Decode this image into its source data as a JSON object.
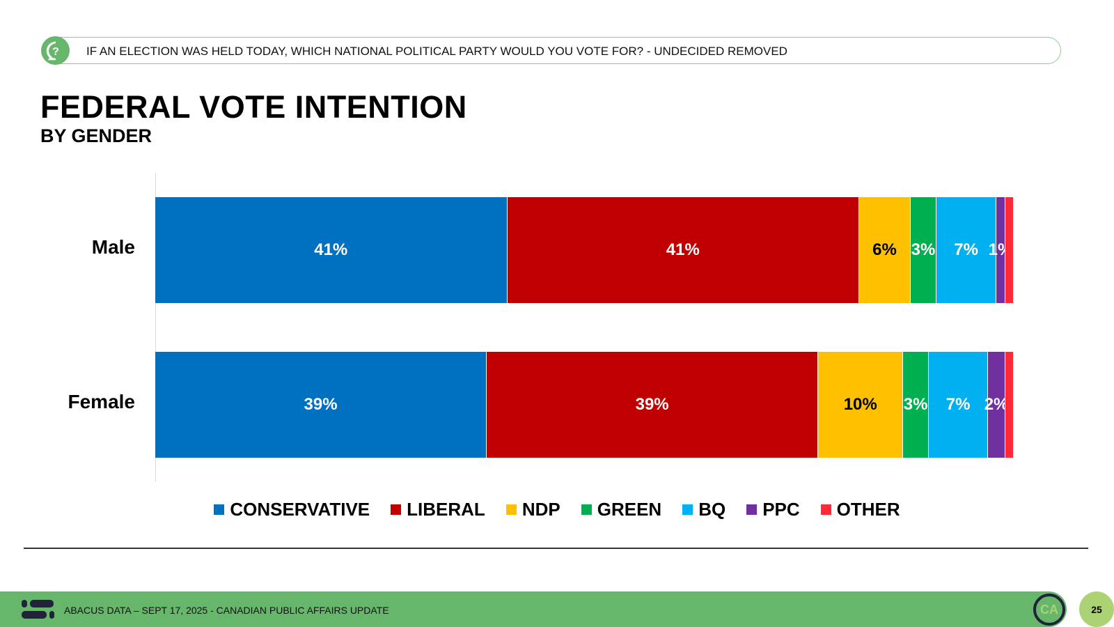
{
  "header": {
    "question": "IF AN ELECTION WAS HELD TODAY, WHICH NATIONAL POLITICAL PARTY WOULD YOU VOTE FOR? - UNDECIDED REMOVED",
    "icon": "question-bubble-icon"
  },
  "chart_data": {
    "type": "bar",
    "orientation": "horizontal-stacked",
    "title": "FEDERAL VOTE INTENTION",
    "subtitle": "BY GENDER",
    "categories": [
      "Male",
      "Female"
    ],
    "series": [
      {
        "name": "CONSERVATIVE",
        "color": "#0070c0",
        "values": [
          41,
          39
        ],
        "labels": [
          "41%",
          "39%"
        ],
        "text_color": "#ffffff"
      },
      {
        "name": "LIBERAL",
        "color": "#c00000",
        "values": [
          41,
          39
        ],
        "labels": [
          "41%",
          "39%"
        ],
        "text_color": "#ffffff"
      },
      {
        "name": "NDP",
        "color": "#ffc000",
        "values": [
          6,
          10
        ],
        "labels": [
          "6%",
          "10%"
        ],
        "text_color": "#000000"
      },
      {
        "name": "GREEN",
        "color": "#00b050",
        "values": [
          3,
          3
        ],
        "labels": [
          "3%",
          "3%"
        ],
        "text_color": "#ffffff"
      },
      {
        "name": "BQ",
        "color": "#00b0f0",
        "values": [
          7,
          7
        ],
        "labels": [
          "7%",
          "7%"
        ],
        "text_color": "#ffffff"
      },
      {
        "name": "PPC",
        "color": "#7030a0",
        "values": [
          1,
          2
        ],
        "labels": [
          "1%",
          "2%"
        ],
        "text_color": "#ffffff"
      },
      {
        "name": "OTHER",
        "color": "#ff2a37",
        "values": [
          1,
          1
        ],
        "labels": [
          "",
          ""
        ],
        "text_color": "#ffffff"
      }
    ],
    "legend_position": "bottom",
    "grid": false
  },
  "footer": {
    "text": "ABACUS DATA – SEPT 17, 2025 - CANADIAN PUBLIC AFFAIRS UPDATE",
    "page": "25",
    "logo": "CA"
  }
}
